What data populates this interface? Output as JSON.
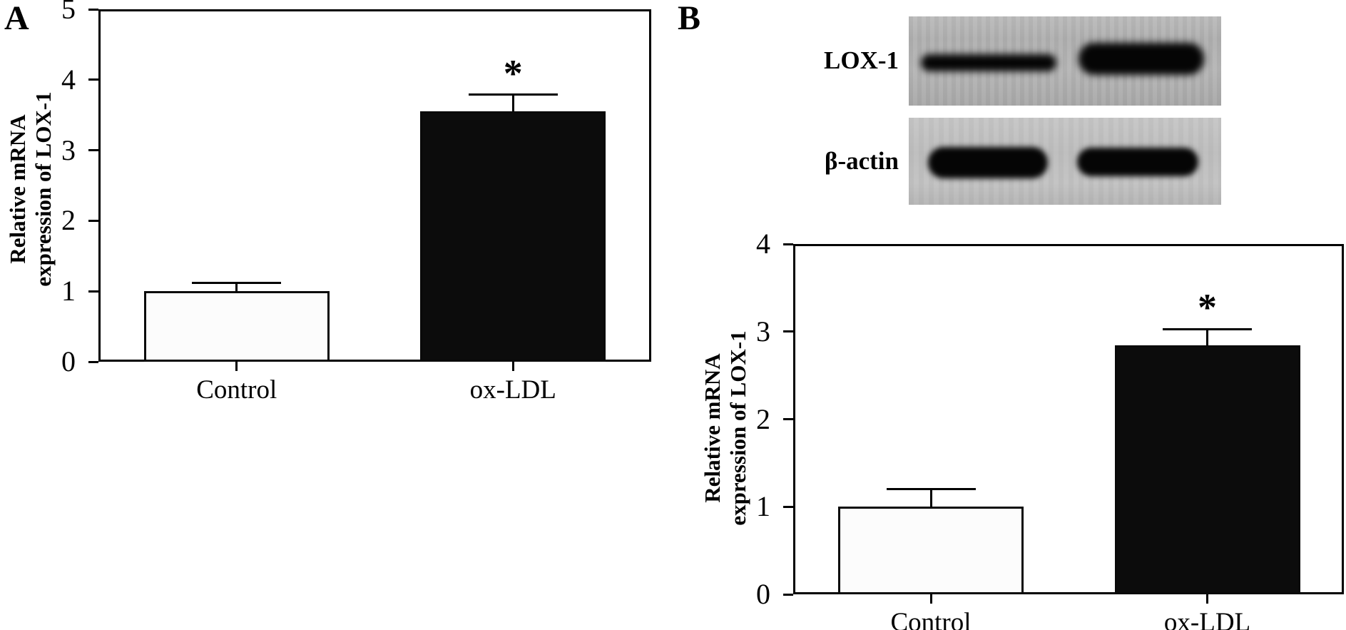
{
  "figure": {
    "panel_a_label": "A",
    "panel_b_label": "B"
  },
  "panel_b": {
    "blot": {
      "rows": [
        {
          "label": "LOX-1"
        },
        {
          "label": "β-actin"
        }
      ]
    }
  },
  "colors": {
    "control_bar_fill": "#fcfcfc",
    "oxldl_bar_fill": "#0c0c0c",
    "axis": "#000000",
    "blot_background": "#b3b3b3"
  },
  "chart_data": [
    {
      "type": "bar",
      "panel": "A",
      "title": "",
      "xlabel": "",
      "ylabel": "Relative mRNA expression of LOX-1",
      "ylabel_lines": [
        "Relative mRNA",
        "expression of LOX-1"
      ],
      "categories": [
        "Control",
        "ox-LDL"
      ],
      "values": [
        1.0,
        3.55
      ],
      "errors_plus": [
        0.12,
        0.24
      ],
      "bar_fills": [
        "#fcfcfc",
        "#0c0c0c"
      ],
      "significance": [
        "",
        "*"
      ],
      "ylim": [
        0,
        5
      ],
      "yticks": [
        0,
        1,
        2,
        3,
        4,
        5
      ],
      "grid": false,
      "legend": null
    },
    {
      "type": "bar",
      "panel": "B",
      "title": "",
      "xlabel": "",
      "ylabel": "Relative mRNA expression of LOX-1",
      "ylabel_lines": [
        "Relative mRNA",
        "expression of LOX-1"
      ],
      "categories": [
        "Control",
        "ox-LDL"
      ],
      "values": [
        1.0,
        2.84
      ],
      "errors_plus": [
        0.2,
        0.19
      ],
      "bar_fills": [
        "#fcfcfc",
        "#0c0c0c"
      ],
      "significance": [
        "",
        "*"
      ],
      "ylim": [
        0,
        4
      ],
      "yticks": [
        0,
        1,
        2,
        3,
        4
      ],
      "grid": false,
      "legend": null
    }
  ]
}
